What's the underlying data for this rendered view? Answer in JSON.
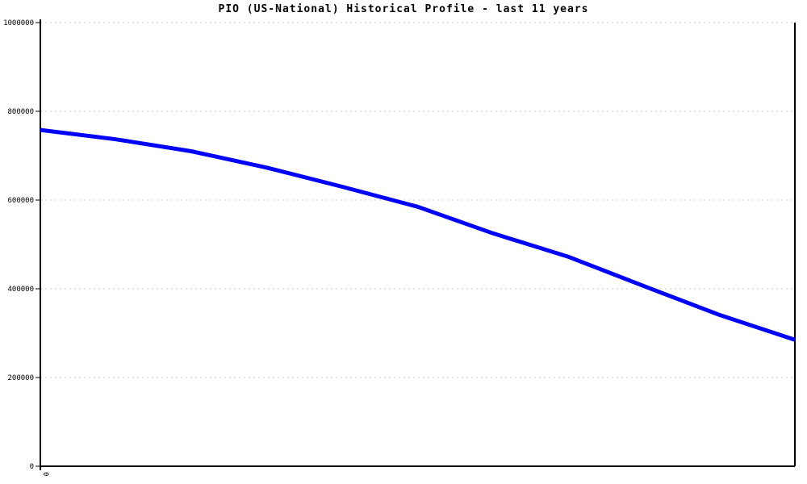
{
  "chart_data": {
    "type": "line",
    "title": "PIO (US-National) Historical Profile - last 11 years",
    "x": [
      0,
      1,
      2,
      3,
      4,
      5,
      6,
      7,
      8,
      9,
      10
    ],
    "series": [
      {
        "name": "PIO (US-National)",
        "color": "#0000ff",
        "values": [
          758000,
          737000,
          710000,
          673000,
          630000,
          585000,
          525000,
          472000,
          406000,
          341000,
          285000
        ]
      }
    ],
    "xlabel": "",
    "ylabel": "",
    "xlim": [
      0,
      10
    ],
    "ylim": [
      0,
      1000000
    ],
    "y_ticks": [
      0,
      200000,
      400000,
      600000,
      800000,
      1000000
    ],
    "y_tick_labels": [
      "0",
      "200000",
      "400000",
      "600000",
      "800000",
      "1000000"
    ],
    "x_tick_labels": [
      "0"
    ],
    "grid": "horizontal dashed gridlines at each y tick",
    "legend_position": "none",
    "colors": {
      "line": "#0000ff",
      "axis": "#000000",
      "grid": "#c8c8c8",
      "background": "#ffffff",
      "title_text": "#000000"
    }
  }
}
